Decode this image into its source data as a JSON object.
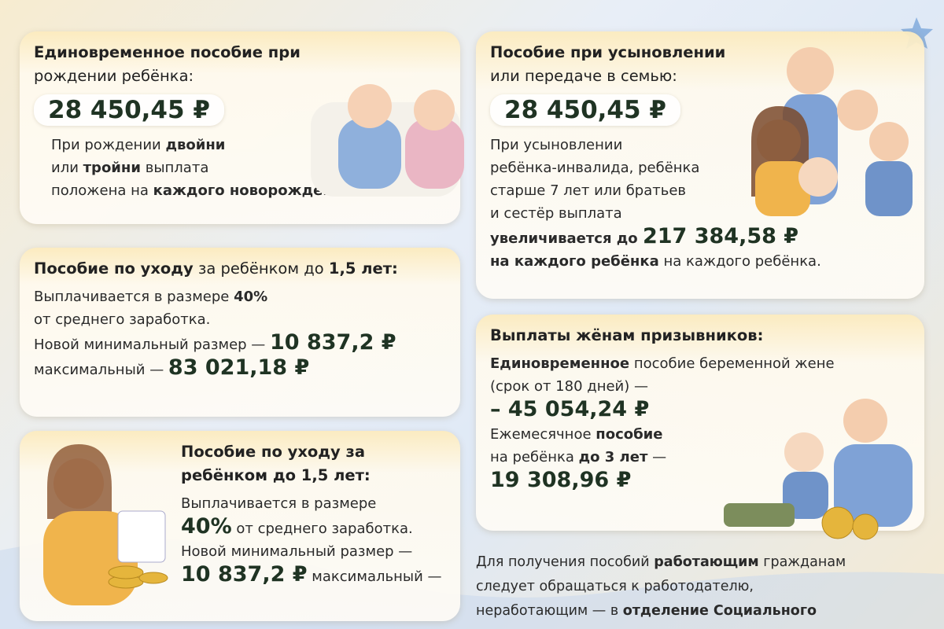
{
  "panels": [
    {
      "title": [
        [
          {
            "text": "Единовременное пособие при",
            "style": "bold"
          }
        ],
        [
          {
            "text": "рождении ребёнка:",
            "style": "regular"
          }
        ]
      ],
      "amount": "28 450,45 ₽",
      "lines": [
        [
          {
            "text": "При рождении ",
            "style": "regular"
          },
          {
            "text": "двойни",
            "style": "bold"
          }
        ],
        [
          {
            "text": "или ",
            "style": "regular"
          },
          {
            "text": "тройни",
            "style": "bold"
          },
          {
            "text": " выплата",
            "style": "regular"
          }
        ],
        [
          {
            "text": "положена на ",
            "style": "regular"
          },
          {
            "text": "каждого новорождённого.",
            "style": "bold"
          }
        ]
      ]
    },
    {
      "title": [
        [
          {
            "text": "Пособие по уходу",
            "style": "bold"
          },
          {
            "text": " за ребёнком до ",
            "style": "regular"
          },
          {
            "text": "1,5 лет:",
            "style": "bold"
          }
        ]
      ],
      "lines": [
        [
          {
            "text": "Выплачивается в размере ",
            "style": "regular"
          },
          {
            "text": "40%",
            "style": "bold"
          }
        ],
        [
          {
            "text": "от среднего заработка.",
            "style": "regular"
          }
        ],
        [
          {
            "text": "Новой минимальный размер — ",
            "style": "regular"
          },
          {
            "text": "10 837,2 ₽",
            "style": "amount"
          }
        ],
        [
          {
            "text": "максимальный — ",
            "style": "regular"
          },
          {
            "text": "83 021,18 ₽",
            "style": "amount"
          }
        ]
      ]
    },
    {
      "title": [
        [
          {
            "text": "Пособие по уходу за ребёнком до 1,5 лет:",
            "style": "bold"
          }
        ]
      ],
      "lines": [
        [
          {
            "text": "Выплачивается в размере",
            "style": "regular"
          }
        ],
        [
          {
            "text": "40%",
            "style": "amount"
          },
          {
            "text": " от среднего заработка.",
            "style": "regular"
          }
        ],
        [
          {
            "text": "Новой минимальный размер —",
            "style": "regular"
          }
        ],
        [
          {
            "text": "10 837,2 ₽",
            "style": "amount"
          },
          {
            "text": "  максимальный —",
            "style": "regular"
          }
        ]
      ]
    },
    {
      "title": [
        [
          {
            "text": "Пособие при усыновлении",
            "style": "bold"
          }
        ],
        [
          {
            "text": "или передаче в семью:",
            "style": "regular"
          }
        ]
      ],
      "amount": "28 450,45 ₽",
      "lines": [
        [
          {
            "text": "При усыновлении",
            "style": "regular"
          }
        ],
        [
          {
            "text": "ребёнка-инвалида, ребёнка",
            "style": "regular"
          }
        ],
        [
          {
            "text": "старше 7 лет или братьев",
            "style": "regular"
          }
        ],
        [
          {
            "text": "и сестёр выплата",
            "style": "regular"
          }
        ],
        [
          {
            "text": "увеличивается до  ",
            "style": "bold"
          },
          {
            "text": "217 384,58 ₽",
            "style": "amount"
          }
        ],
        [
          {
            "text": "на каждого ребёнка",
            "style": "bold"
          },
          {
            "text": "   на каждого ребёнка.",
            "style": "regular"
          }
        ]
      ]
    },
    {
      "title": [
        [
          {
            "text": "Выплаты жёнам призывников:",
            "style": "bold"
          }
        ]
      ],
      "lines": [
        [
          {
            "text": "Единовременное",
            "style": "bold"
          },
          {
            "text": " пособие беременной жене",
            "style": "regular"
          }
        ],
        [
          {
            "text": "(срок от 180 дней) —",
            "style": "regular"
          }
        ],
        [
          {
            "text": "– 45 054,24 ₽",
            "style": "amount"
          }
        ],
        [
          {
            "text": "Ежемесячное ",
            "style": "regular"
          },
          {
            "text": "пособие",
            "style": "bold"
          }
        ],
        [
          {
            "text": "на ребёнка ",
            "style": "regular"
          },
          {
            "text": "до 3 лет",
            "style": "bold"
          },
          {
            "text": " —",
            "style": "regular"
          }
        ],
        [
          {
            "text": "19 308,96 ₽",
            "style": "amount"
          }
        ]
      ]
    }
  ],
  "footer": [
    [
      {
        "text": "Для получения пособий ",
        "style": "regular"
      },
      {
        "text": "работающим",
        "style": "bold"
      },
      {
        "text": " гражданам",
        "style": "regular"
      }
    ],
    [
      {
        "text": "следует обращаться к работодателю,",
        "style": "regular"
      }
    ],
    [
      {
        "text": "неработающим — в ",
        "style": "regular"
      },
      {
        "text": "отделение Социального",
        "style": "bold"
      }
    ]
  ]
}
